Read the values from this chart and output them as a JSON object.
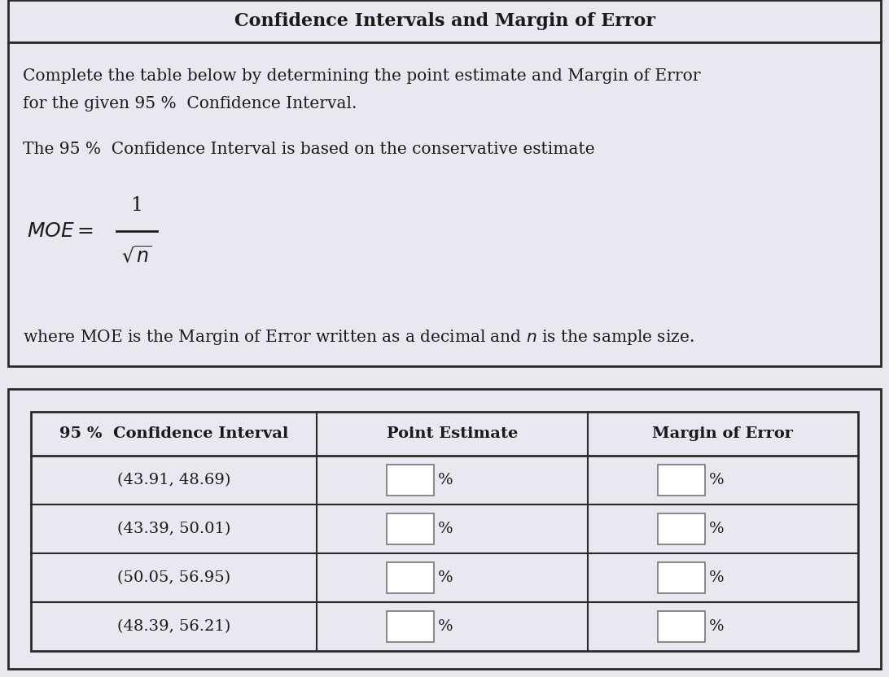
{
  "title": "Confidence Intervals and Margin of Error",
  "bg_color": "#e8e8f0",
  "white": "#ffffff",
  "border_color": "#2a2a2a",
  "text_color": "#1a1a1a",
  "desc1": "Complete the table below by determining the point estimate and Margin of Error",
  "desc2": "for the given 95 %  Confidence Interval.",
  "desc3": "The 95 %  Confidence Interval is based on the conservative estimate",
  "desc5": "where MOE is the Margin of Error written as a decimal and $n$ is the sample size.",
  "col_headers": [
    "95 %  Confidence Interval",
    "Point Estimate",
    "Margin of Error"
  ],
  "rows": [
    "(43.91, 48.69)",
    "(43.39, 50.01)",
    "(50.05, 56.95)",
    "(48.39, 56.21)"
  ],
  "fig_w": 10.92,
  "fig_h": 8.32,
  "dpi": 100
}
